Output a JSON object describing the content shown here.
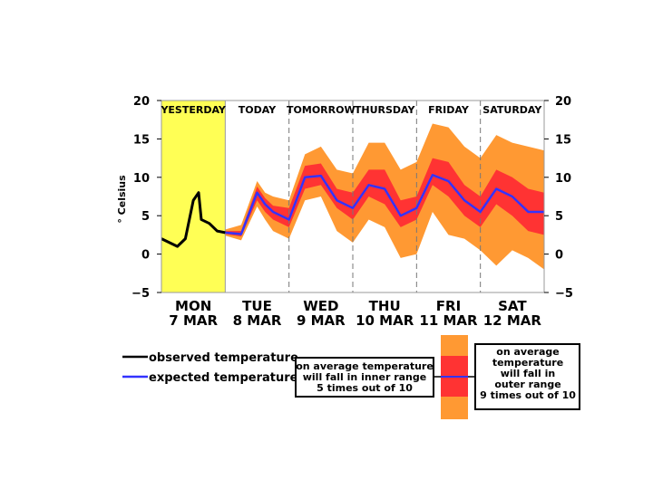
{
  "chart_data": {
    "type": "area",
    "title": "",
    "ylabel": "° Celsius",
    "xlabel": "",
    "ylim": [
      -5,
      20
    ],
    "yticks": [
      "20",
      "15",
      "10",
      "5",
      "0",
      "−5"
    ],
    "yticks_values": [
      20,
      15,
      10,
      5,
      0,
      -5
    ],
    "xlim": [
      0,
      6
    ],
    "period_labels": [
      "YESTERDAY",
      "TODAY",
      "TOMORROW",
      "THURSDAY",
      "FRIDAY",
      "SATURDAY"
    ],
    "days": [
      {
        "weekday": "MON",
        "date": "7 MAR"
      },
      {
        "weekday": "TUE",
        "date": "8 MAR"
      },
      {
        "weekday": "WED",
        "date": "9 MAR"
      },
      {
        "weekday": "THU",
        "date": "10 MAR"
      },
      {
        "weekday": "FRI",
        "date": "11 MAR"
      },
      {
        "weekday": "SAT",
        "date": "12 MAR"
      }
    ],
    "series": [
      {
        "name": "observed temperature",
        "color": "#000000",
        "x": [
          0.0,
          0.25,
          0.375,
          0.5,
          0.583,
          0.625,
          0.75,
          0.875,
          1.0
        ],
        "values": [
          2.0,
          1.0,
          2.0,
          7.0,
          8.0,
          4.5,
          4.0,
          3.0,
          2.8
        ]
      },
      {
        "name": "expected temperature",
        "color": "#3333ff",
        "x": [
          1.0,
          1.25,
          1.5,
          1.625,
          1.75,
          2.0,
          2.25,
          2.5,
          2.75,
          3.0,
          3.25,
          3.5,
          3.75,
          4.0,
          4.25,
          4.5,
          4.75,
          5.0,
          5.25,
          5.5,
          5.75,
          6.0
        ],
        "values": [
          2.8,
          2.6,
          8.0,
          6.5,
          5.5,
          4.5,
          10.0,
          10.2,
          7.0,
          6.0,
          9.0,
          8.5,
          5.0,
          6.0,
          10.3,
          9.5,
          7.0,
          5.5,
          8.5,
          7.5,
          5.5,
          5.5
        ]
      },
      {
        "name": "inner range (5 times out of 10)",
        "color": "#ff3333",
        "x": [
          1.0,
          1.25,
          1.5,
          1.625,
          1.75,
          2.0,
          2.25,
          2.5,
          2.75,
          3.0,
          3.25,
          3.5,
          3.75,
          4.0,
          4.25,
          4.5,
          4.75,
          5.0,
          5.25,
          5.5,
          5.75,
          6.0
        ],
        "lower": [
          2.6,
          2.3,
          7.0,
          5.5,
          4.5,
          3.5,
          8.5,
          9.0,
          6.0,
          4.5,
          7.5,
          6.5,
          3.5,
          4.5,
          9.0,
          7.5,
          5.0,
          3.5,
          6.5,
          5.0,
          3.0,
          2.5
        ],
        "upper": [
          3.0,
          3.0,
          8.8,
          7.3,
          6.3,
          6.0,
          11.5,
          11.8,
          8.5,
          8.0,
          11.0,
          11.0,
          7.0,
          7.5,
          12.5,
          12.0,
          9.0,
          7.5,
          11.0,
          10.0,
          8.5,
          8.0
        ]
      },
      {
        "name": "outer range (9 times out of 10)",
        "color": "#ff9933",
        "x": [
          1.0,
          1.25,
          1.5,
          1.625,
          1.75,
          2.0,
          2.25,
          2.5,
          2.75,
          3.0,
          3.25,
          3.5,
          3.75,
          4.0,
          4.25,
          4.5,
          4.75,
          5.0,
          5.25,
          5.5,
          5.75,
          6.0
        ],
        "lower": [
          2.4,
          1.8,
          6.2,
          4.5,
          3.0,
          2.0,
          7.0,
          7.5,
          3.0,
          1.5,
          4.5,
          3.5,
          -0.5,
          0.0,
          5.5,
          2.5,
          2.0,
          0.5,
          -1.5,
          0.5,
          -0.5,
          -2.0
        ],
        "upper": [
          3.2,
          3.8,
          9.5,
          8.0,
          7.5,
          7.0,
          13.0,
          14.0,
          11.0,
          10.5,
          14.5,
          14.5,
          11.0,
          12.0,
          17.0,
          16.5,
          14.0,
          12.5,
          15.5,
          14.5,
          14.0,
          13.5
        ]
      }
    ],
    "highlight": {
      "label": "YESTERDAY",
      "x_range": [
        0,
        1
      ],
      "color": "#ffff55"
    },
    "legend": {
      "observed_label": "observed temperature",
      "expected_label": "expected temperature",
      "inner_note": [
        "on average temperature",
        "will fall in inner range",
        "5 times out of 10"
      ],
      "outer_note": [
        "on average",
        "temperature",
        "will fall in",
        "outer range",
        "9 times out of 10"
      ]
    }
  }
}
